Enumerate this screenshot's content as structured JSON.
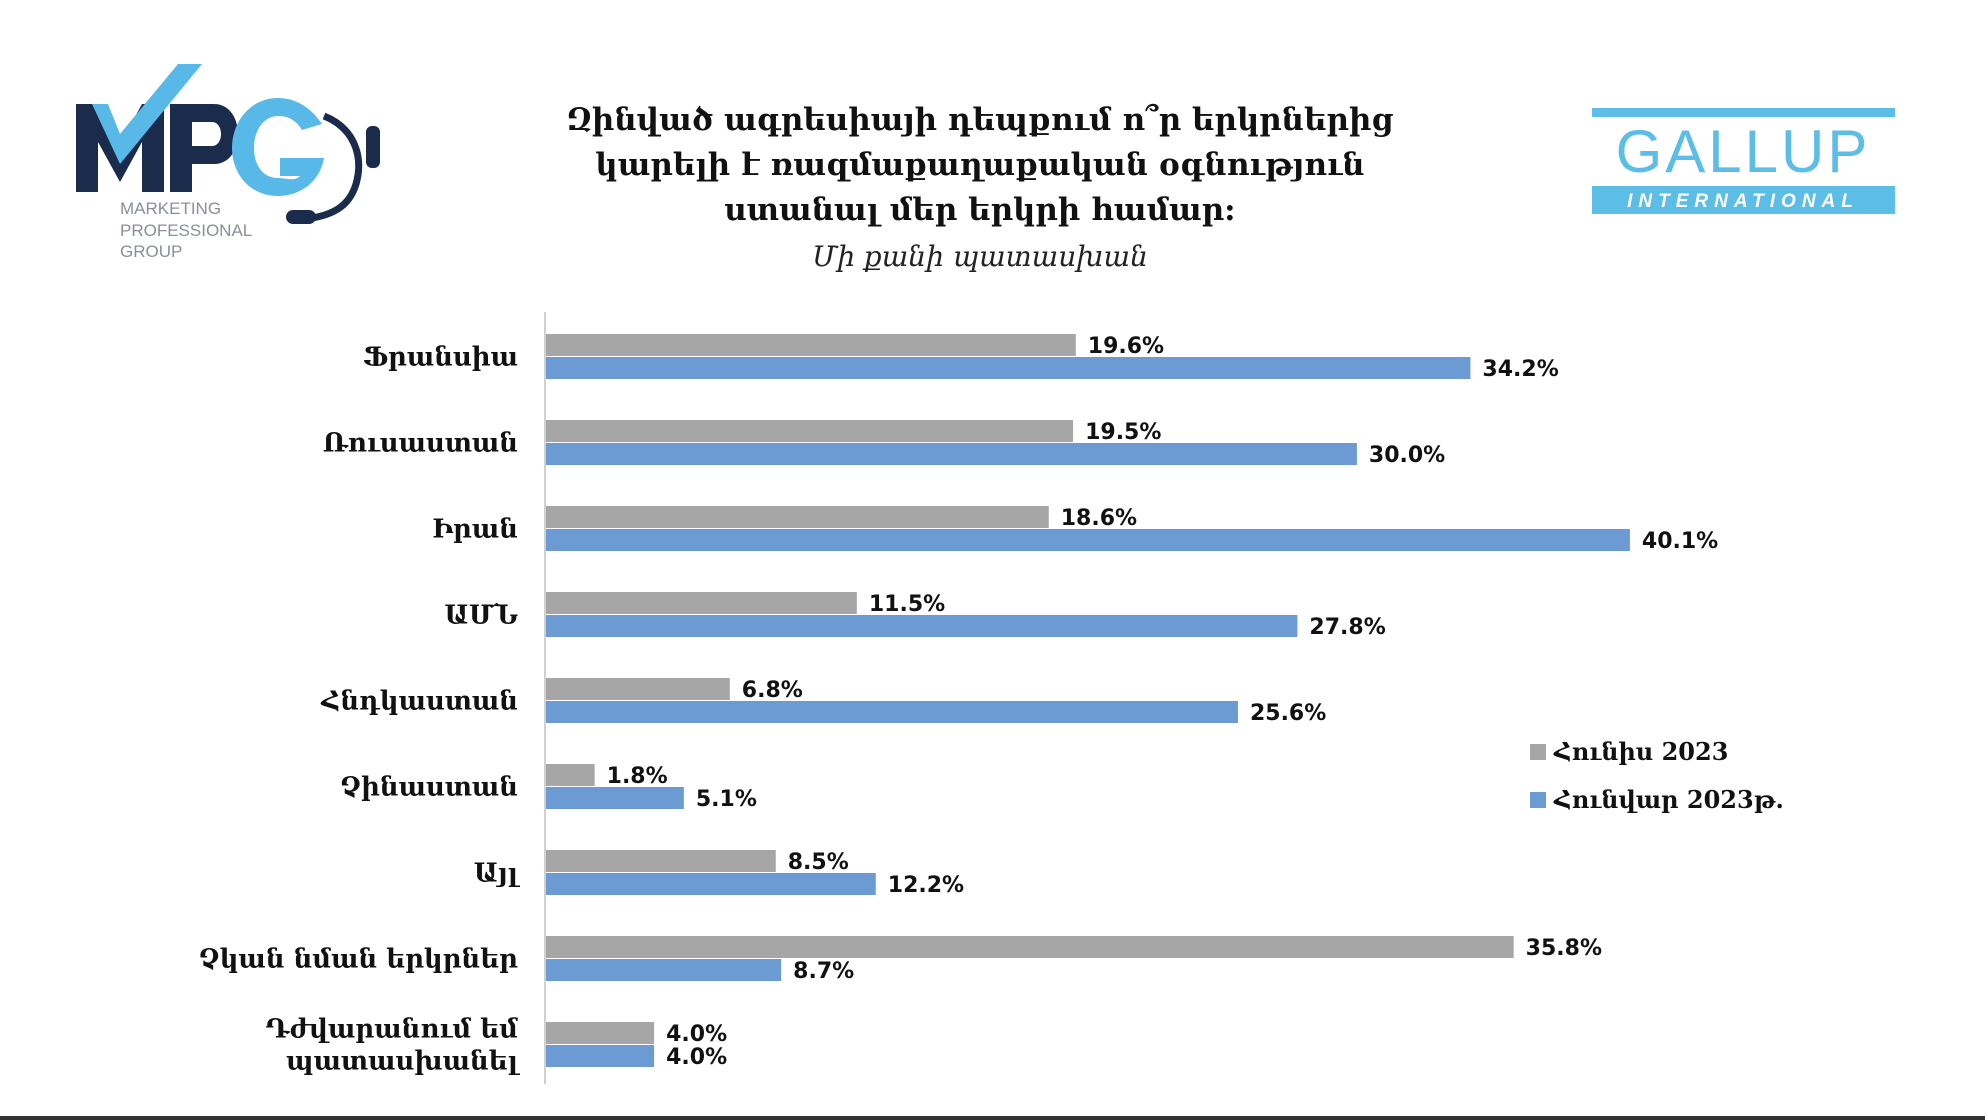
{
  "logos": {
    "mpg": {
      "name": "MPG",
      "lines": [
        "MARKETING",
        "PROFESSIONAL",
        "GROUP"
      ],
      "colors": {
        "navy": "#1a2b4c",
        "light_blue": "#58b9e8",
        "gray": "#8a8f99"
      }
    },
    "gallup": {
      "name": "GALLUP",
      "sub": "INTERNATIONAL",
      "colors": {
        "accent": "#5cbde6"
      }
    }
  },
  "chart_data": {
    "type": "bar",
    "orientation": "horizontal",
    "title_lines": [
      "Զինված ագրեսիայի դեպքում ո՞ր երկրներից",
      "կարելի է ռազմաքաղաքական օգնություն",
      "ստանալ մեր երկրի համար:"
    ],
    "subtitle": "Մի քանի պատասխան",
    "categories": [
      "Ֆրանսիա",
      "Ռուսաստան",
      "Իրան",
      "ԱՄՆ",
      "Հնդկաստան",
      "Չինաստան",
      "Այլ",
      "Չկան նման երկրներ",
      "Դժվարանում եմ պատասխանել"
    ],
    "category_display_lines": [
      [
        "Ֆրանսիա"
      ],
      [
        "Ռուսաստան"
      ],
      [
        "Իրան"
      ],
      [
        "ԱՄՆ"
      ],
      [
        "Հնդկաստան"
      ],
      [
        "Չինաստան"
      ],
      [
        "Այլ"
      ],
      [
        "Չկան նման երկրներ"
      ],
      [
        "Դժվարանում եմ",
        "պատասխանել"
      ]
    ],
    "series": [
      {
        "name": "Հունիս 2023",
        "color": "#a6a6a6",
        "values": [
          19.6,
          19.5,
          18.6,
          11.5,
          6.8,
          1.8,
          8.5,
          35.8,
          4.0
        ],
        "labels": [
          "19.6%",
          "19.5%",
          "18.6%",
          "11.5%",
          "6.8%",
          "1.8%",
          "8.5%",
          "35.8%",
          "4.0%"
        ]
      },
      {
        "name": "Հունվար 2023թ.",
        "color": "#6b9bd2",
        "values": [
          34.2,
          30.0,
          40.1,
          27.8,
          25.6,
          5.1,
          12.2,
          8.7,
          4.0
        ],
        "labels": [
          "34.2%",
          "30.0%",
          "40.1%",
          "27.8%",
          "25.6%",
          "5.1%",
          "12.2%",
          "8.7%",
          "4.0%"
        ]
      }
    ],
    "unit": "%",
    "xlim": [
      0,
      45
    ],
    "grid": false,
    "legend_position": "right"
  }
}
